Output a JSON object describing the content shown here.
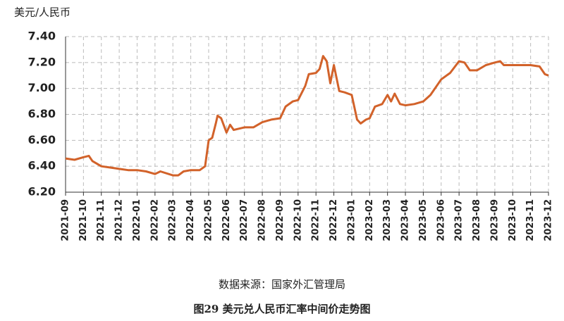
{
  "chart_data": {
    "type": "line",
    "y_label": "美元/人民币",
    "source": "数据来源：国家外汇管理局",
    "caption": "图29   美元兑人民币汇率中间价走势图",
    "color": "#d2622a",
    "grid": true,
    "xlim": [
      0,
      27
    ],
    "ylim": [
      6.2,
      7.4
    ],
    "yticks": [
      {
        "value": 6.2,
        "label": "6.20"
      },
      {
        "value": 6.4,
        "label": "6.40"
      },
      {
        "value": 6.6,
        "label": "6.60"
      },
      {
        "value": 6.8,
        "label": "6.80"
      },
      {
        "value": 7.0,
        "label": "7.00"
      },
      {
        "value": 7.2,
        "label": "7.20"
      },
      {
        "value": 7.4,
        "label": "7.40"
      }
    ],
    "xticks": [
      {
        "value": 0,
        "label": "2021-09"
      },
      {
        "value": 1,
        "label": "2021-10"
      },
      {
        "value": 2,
        "label": "2021-11"
      },
      {
        "value": 3,
        "label": "2021-12"
      },
      {
        "value": 4,
        "label": "2022-01"
      },
      {
        "value": 5,
        "label": "2022-02"
      },
      {
        "value": 6,
        "label": "2022-03"
      },
      {
        "value": 7,
        "label": "2022-04"
      },
      {
        "value": 8,
        "label": "2022-05"
      },
      {
        "value": 9,
        "label": "2022-06"
      },
      {
        "value": 10,
        "label": "2022-07"
      },
      {
        "value": 11,
        "label": "2022-08"
      },
      {
        "value": 12,
        "label": "2022-09"
      },
      {
        "value": 13,
        "label": "2022-10"
      },
      {
        "value": 14,
        "label": "2022-11"
      },
      {
        "value": 15,
        "label": "2022-12"
      },
      {
        "value": 16,
        "label": "2023-01"
      },
      {
        "value": 17,
        "label": "2023-02"
      },
      {
        "value": 18,
        "label": "2023-03"
      },
      {
        "value": 19,
        "label": "2023-04"
      },
      {
        "value": 20,
        "label": "2023-05"
      },
      {
        "value": 21,
        "label": "2023-06"
      },
      {
        "value": 22,
        "label": "2023-07"
      },
      {
        "value": 23,
        "label": "2023-08"
      },
      {
        "value": 24,
        "label": "2023-09"
      },
      {
        "value": 25,
        "label": "2023-10"
      },
      {
        "value": 26,
        "label": "2023-11"
      },
      {
        "value": 27,
        "label": "2023-12"
      }
    ],
    "x": [
      0,
      0.5,
      1,
      1.3,
      1.5,
      2,
      2.5,
      3,
      3.5,
      4,
      4.5,
      5,
      5.3,
      6,
      6.3,
      6.6,
      7,
      7.5,
      7.8,
      8,
      8.2,
      8.4,
      8.5,
      8.7,
      9,
      9.2,
      9.4,
      10,
      10.5,
      11,
      11.5,
      12,
      12.3,
      12.7,
      13,
      13.4,
      13.6,
      14,
      14.2,
      14.4,
      14.6,
      14.8,
      15,
      15.3,
      15.6,
      16,
      16.3,
      16.5,
      16.8,
      17,
      17.3,
      17.7,
      18,
      18.2,
      18.4,
      18.7,
      19,
      19.5,
      20,
      20.4,
      21,
      21.5,
      22,
      22.3,
      22.6,
      23,
      23.5,
      24,
      24.3,
      24.5,
      25,
      25.5,
      26,
      26.5,
      26.8,
      27
    ],
    "values": [
      6.46,
      6.45,
      6.47,
      6.48,
      6.44,
      6.4,
      6.39,
      6.38,
      6.37,
      6.37,
      6.36,
      6.34,
      6.36,
      6.33,
      6.33,
      6.36,
      6.37,
      6.37,
      6.4,
      6.6,
      6.62,
      6.73,
      6.79,
      6.77,
      6.66,
      6.72,
      6.68,
      6.7,
      6.7,
      6.74,
      6.76,
      6.77,
      6.86,
      6.9,
      6.91,
      7.02,
      7.11,
      7.12,
      7.15,
      7.25,
      7.21,
      7.04,
      7.18,
      6.98,
      6.97,
      6.95,
      6.76,
      6.73,
      6.76,
      6.77,
      6.86,
      6.88,
      6.95,
      6.9,
      6.96,
      6.88,
      6.87,
      6.88,
      6.9,
      6.95,
      7.07,
      7.12,
      7.21,
      7.2,
      7.14,
      7.14,
      7.18,
      7.2,
      7.21,
      7.18,
      7.18,
      7.18,
      7.18,
      7.17,
      7.11,
      7.1
    ]
  }
}
